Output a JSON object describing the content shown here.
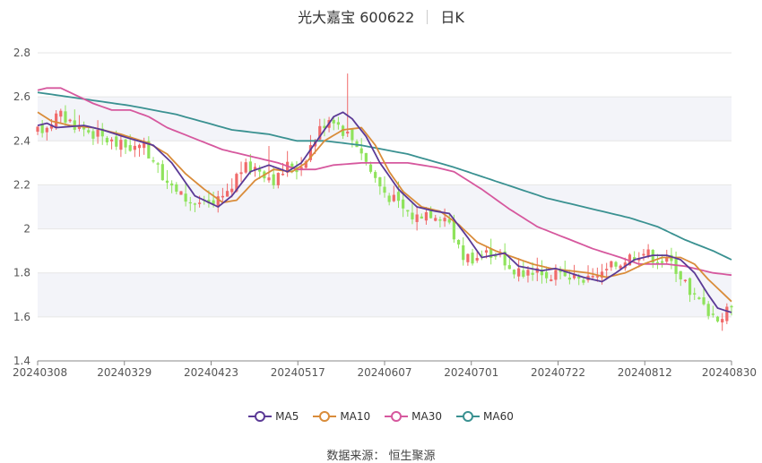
{
  "header": {
    "title": "光大嘉宝 600622",
    "period": "日K"
  },
  "footer": {
    "source": "数据来源：  恒生聚源"
  },
  "chart_data": {
    "type": "candlestick",
    "ylim": [
      1.4,
      2.8
    ],
    "y_ticks": [
      "1.4",
      "1.6",
      "1.8",
      "2",
      "2.2",
      "2.4",
      "2.6",
      "2.8"
    ],
    "x_ticks": [
      "20240308",
      "20240329",
      "20240423",
      "20240517",
      "20240607",
      "20240701",
      "20240722",
      "20240812",
      "20240830"
    ],
    "colors": {
      "up": "#f06a6a",
      "down": "#8fe35c",
      "ma5": "#5b3a96",
      "ma10": "#d98c3a",
      "ma30": "#d6589e",
      "ma60": "#3a9191",
      "band": "#f3f4f9",
      "grid": "#e6e6e6"
    },
    "legend": [
      {
        "name": "MA5",
        "color": "#5b3a96"
      },
      {
        "name": "MA10",
        "color": "#d98c3a"
      },
      {
        "name": "MA30",
        "color": "#d6589e"
      },
      {
        "name": "MA60",
        "color": "#3a9191"
      }
    ],
    "anchors": {
      "price": [
        [
          0,
          2.43
        ],
        [
          5,
          2.52
        ],
        [
          10,
          2.46
        ],
        [
          18,
          2.38
        ],
        [
          24,
          2.36
        ],
        [
          30,
          2.17
        ],
        [
          34,
          2.12
        ],
        [
          38,
          2.1
        ],
        [
          42,
          2.16
        ],
        [
          44,
          2.27
        ],
        [
          48,
          2.28
        ],
        [
          52,
          2.22
        ],
        [
          55,
          2.3
        ],
        [
          57,
          2.27
        ],
        [
          60,
          2.4
        ],
        [
          62,
          2.47
        ],
        [
          64,
          2.52
        ],
        [
          66,
          2.46
        ],
        [
          68,
          2.42
        ],
        [
          70,
          2.38
        ],
        [
          72,
          2.28
        ],
        [
          75,
          2.18
        ],
        [
          79,
          2.1
        ],
        [
          82,
          2.05
        ],
        [
          84,
          2.08
        ],
        [
          88,
          2.07
        ],
        [
          90,
          2.0
        ],
        [
          92,
          1.88
        ],
        [
          95,
          1.87
        ],
        [
          99,
          1.9
        ],
        [
          101,
          1.87
        ],
        [
          104,
          1.79
        ],
        [
          108,
          1.82
        ],
        [
          111,
          1.79
        ],
        [
          116,
          1.77
        ],
        [
          121,
          1.76
        ],
        [
          124,
          1.82
        ],
        [
          128,
          1.87
        ],
        [
          131,
          1.9
        ],
        [
          135,
          1.86
        ],
        [
          138,
          1.84
        ],
        [
          140,
          1.77
        ],
        [
          143,
          1.68
        ],
        [
          146,
          1.62
        ],
        [
          148,
          1.6
        ],
        [
          150,
          1.63
        ]
      ],
      "ma5": [
        [
          0,
          2.47
        ],
        [
          2,
          2.48
        ],
        [
          4,
          2.46
        ],
        [
          10,
          2.47
        ],
        [
          14,
          2.45
        ],
        [
          20,
          2.41
        ],
        [
          25,
          2.38
        ],
        [
          29,
          2.3
        ],
        [
          34,
          2.15
        ],
        [
          39,
          2.1
        ],
        [
          42,
          2.15
        ],
        [
          46,
          2.26
        ],
        [
          50,
          2.29
        ],
        [
          54,
          2.26
        ],
        [
          57,
          2.3
        ],
        [
          61,
          2.42
        ],
        [
          64,
          2.51
        ],
        [
          66,
          2.53
        ],
        [
          68,
          2.5
        ],
        [
          71,
          2.42
        ],
        [
          74,
          2.3
        ],
        [
          78,
          2.18
        ],
        [
          82,
          2.1
        ],
        [
          86,
          2.08
        ],
        [
          89,
          2.07
        ],
        [
          93,
          1.96
        ],
        [
          96,
          1.87
        ],
        [
          101,
          1.89
        ],
        [
          104,
          1.83
        ],
        [
          109,
          1.81
        ],
        [
          112,
          1.82
        ],
        [
          118,
          1.78
        ],
        [
          122,
          1.76
        ],
        [
          125,
          1.8
        ],
        [
          129,
          1.86
        ],
        [
          133,
          1.88
        ],
        [
          136,
          1.88
        ],
        [
          139,
          1.86
        ],
        [
          142,
          1.8
        ],
        [
          145,
          1.7
        ],
        [
          147,
          1.64
        ],
        [
          150,
          1.62
        ]
      ],
      "ma10": [
        [
          0,
          2.53
        ],
        [
          3,
          2.49
        ],
        [
          7,
          2.47
        ],
        [
          12,
          2.46
        ],
        [
          18,
          2.43
        ],
        [
          24,
          2.39
        ],
        [
          28,
          2.34
        ],
        [
          32,
          2.25
        ],
        [
          36,
          2.18
        ],
        [
          40,
          2.12
        ],
        [
          43,
          2.13
        ],
        [
          47,
          2.22
        ],
        [
          51,
          2.27
        ],
        [
          55,
          2.26
        ],
        [
          58,
          2.3
        ],
        [
          62,
          2.4
        ],
        [
          66,
          2.45
        ],
        [
          70,
          2.46
        ],
        [
          73,
          2.38
        ],
        [
          76,
          2.26
        ],
        [
          79,
          2.17
        ],
        [
          83,
          2.1
        ],
        [
          87,
          2.08
        ],
        [
          91,
          2.02
        ],
        [
          95,
          1.94
        ],
        [
          99,
          1.9
        ],
        [
          103,
          1.87
        ],
        [
          107,
          1.84
        ],
        [
          111,
          1.82
        ],
        [
          115,
          1.81
        ],
        [
          119,
          1.8
        ],
        [
          123,
          1.78
        ],
        [
          127,
          1.8
        ],
        [
          131,
          1.84
        ],
        [
          135,
          1.87
        ],
        [
          139,
          1.87
        ],
        [
          142,
          1.84
        ],
        [
          145,
          1.77
        ],
        [
          148,
          1.71
        ],
        [
          150,
          1.67
        ]
      ],
      "ma30": [
        [
          0,
          2.63
        ],
        [
          2,
          2.64
        ],
        [
          5,
          2.64
        ],
        [
          8,
          2.61
        ],
        [
          12,
          2.57
        ],
        [
          16,
          2.54
        ],
        [
          20,
          2.54
        ],
        [
          24,
          2.51
        ],
        [
          28,
          2.46
        ],
        [
          34,
          2.41
        ],
        [
          40,
          2.36
        ],
        [
          46,
          2.33
        ],
        [
          52,
          2.3
        ],
        [
          56,
          2.27
        ],
        [
          60,
          2.27
        ],
        [
          64,
          2.29
        ],
        [
          70,
          2.3
        ],
        [
          80,
          2.3
        ],
        [
          86,
          2.28
        ],
        [
          90,
          2.26
        ],
        [
          96,
          2.18
        ],
        [
          102,
          2.09
        ],
        [
          108,
          2.01
        ],
        [
          114,
          1.96
        ],
        [
          120,
          1.91
        ],
        [
          126,
          1.87
        ],
        [
          130,
          1.84
        ],
        [
          136,
          1.84
        ],
        [
          140,
          1.83
        ],
        [
          146,
          1.8
        ],
        [
          150,
          1.79
        ]
      ],
      "ma60": [
        [
          0,
          2.62
        ],
        [
          10,
          2.59
        ],
        [
          20,
          2.56
        ],
        [
          30,
          2.52
        ],
        [
          42,
          2.45
        ],
        [
          50,
          2.43
        ],
        [
          56,
          2.4
        ],
        [
          62,
          2.4
        ],
        [
          70,
          2.38
        ],
        [
          80,
          2.34
        ],
        [
          90,
          2.28
        ],
        [
          100,
          2.21
        ],
        [
          110,
          2.14
        ],
        [
          120,
          2.09
        ],
        [
          128,
          2.05
        ],
        [
          134,
          2.01
        ],
        [
          140,
          1.95
        ],
        [
          146,
          1.9
        ],
        [
          150,
          1.86
        ]
      ]
    }
  }
}
